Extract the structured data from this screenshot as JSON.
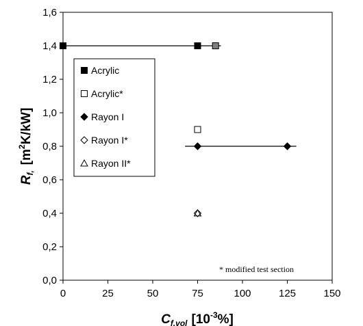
{
  "chart_data": {
    "type": "scatter",
    "xlim": [
      0,
      150
    ],
    "ylim": [
      0,
      1.6
    ],
    "x_ticks": [
      0,
      25,
      50,
      75,
      100,
      125,
      150
    ],
    "y_ticks": [
      0,
      0.2,
      0.4,
      0.6,
      0.8,
      1.0,
      1.2,
      1.4,
      1.6
    ],
    "x_tick_labels": [
      "0",
      "25",
      "50",
      "75",
      "100",
      "125",
      "150"
    ],
    "y_tick_labels": [
      "0,0",
      "0,2",
      "0,4",
      "0,6",
      "0,8",
      "1,0",
      "1,2",
      "1,4",
      "1,6"
    ],
    "xlabel": {
      "main": "C",
      "sub": "f,vol",
      "unit_pre": "[10",
      "unit_sup": "-3",
      "unit_post": "%]"
    },
    "ylabel": {
      "main": "R",
      "sub": "f,",
      "unit_pre": "[m",
      "unit_sup": "2",
      "unit_post": "K/kW]"
    },
    "grid": false,
    "legend_position": "left",
    "series": [
      {
        "name": "Acrylic",
        "marker": "square-filled",
        "color": "#000000",
        "points": [
          [
            0,
            1.4
          ],
          [
            75,
            1.4
          ]
        ]
      },
      {
        "name": "Acrylic*",
        "marker": "square-open",
        "color": "#000000",
        "points": [
          [
            75,
            0.9
          ]
        ]
      },
      {
        "name": "Rayon I",
        "marker": "diamond-filled",
        "color": "#000000",
        "points": [
          [
            75,
            0.8
          ],
          [
            125,
            0.8
          ]
        ]
      },
      {
        "name": "Rayon I*",
        "marker": "diamond-open",
        "color": "#000000",
        "points": [
          [
            75,
            0.4
          ]
        ]
      },
      {
        "name": "Rayon II*",
        "marker": "triangle-open",
        "color": "#000000",
        "points": [
          [
            75,
            0.4
          ]
        ]
      }
    ],
    "extra_points": [
      {
        "marker": "square-filled",
        "color": "#808080",
        "points": [
          [
            85,
            1.4
          ]
        ]
      }
    ],
    "ranges": [
      {
        "y": 1.4,
        "x_from": 0,
        "x_to": 88
      },
      {
        "y": 0.8,
        "x_from": 68,
        "x_to": 130
      }
    ],
    "annotation": "* modified test section"
  }
}
